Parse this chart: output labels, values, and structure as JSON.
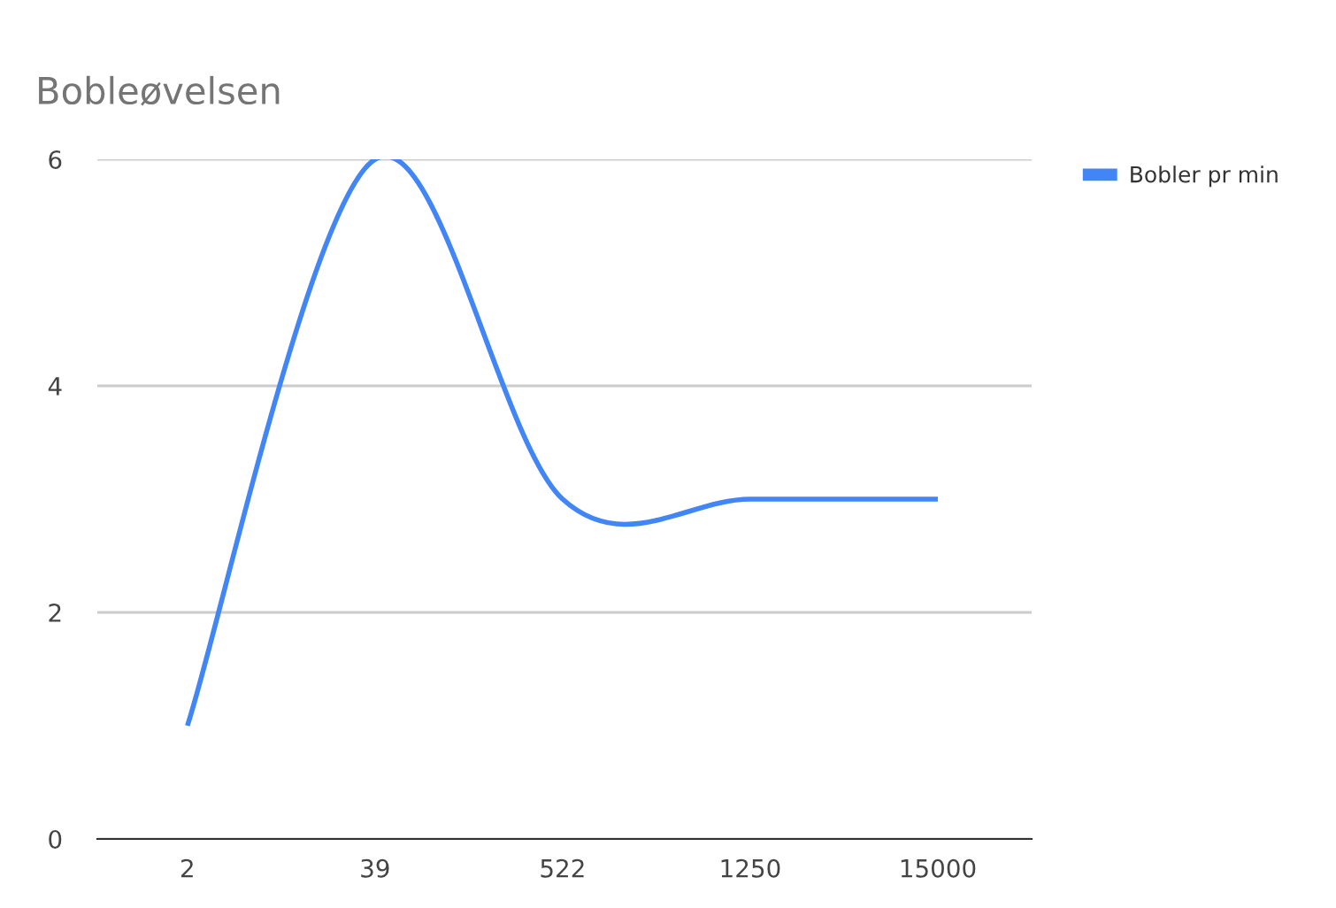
{
  "chart_data": {
    "type": "line",
    "title": "Bobleøvelsen",
    "categories": [
      "2",
      "39",
      "522",
      "1250",
      "15000"
    ],
    "series": [
      {
        "name": "Bobler pr min",
        "color": "#4285f4",
        "values": [
          1,
          6,
          3,
          3,
          3
        ]
      }
    ],
    "ylim": [
      0,
      6
    ],
    "yticks": [
      0,
      2,
      4,
      6
    ],
    "grid": "y",
    "legend": "top right",
    "marker": "none",
    "line_style": "solid"
  }
}
